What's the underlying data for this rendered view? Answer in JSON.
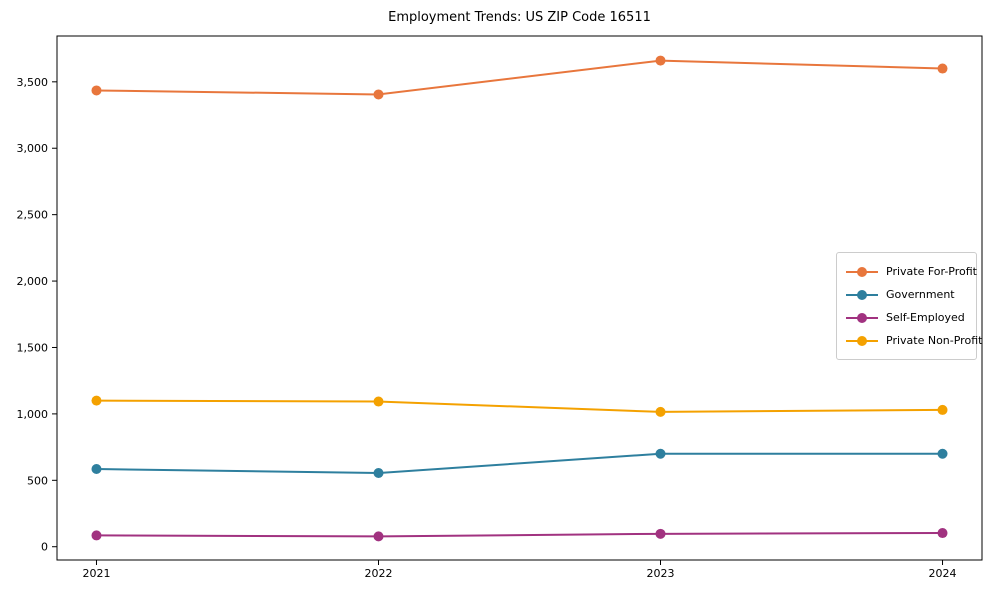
{
  "chart_data": {
    "type": "line",
    "title": "Employment Trends: US ZIP Code 16511",
    "xlabel": "",
    "ylabel": "",
    "x": [
      2021,
      2022,
      2023,
      2024
    ],
    "x_tick_labels": [
      "2021",
      "2022",
      "2023",
      "2024"
    ],
    "y_ticks": [
      0,
      500,
      1000,
      1500,
      2000,
      2500,
      3000,
      3500
    ],
    "y_tick_labels": [
      "0",
      "500",
      "1,000",
      "1,500",
      "2,000",
      "2,500",
      "3,000",
      "3,500"
    ],
    "xlim": [
      2020.86,
      2024.14
    ],
    "ylim": [
      -100,
      3845
    ],
    "grid": false,
    "legend_position": "center-right",
    "marker": "circle",
    "series": [
      {
        "name": "Private For-Profit",
        "color": "#E8763C",
        "values": [
          3435,
          3405,
          3660,
          3600
        ]
      },
      {
        "name": "Government",
        "color": "#2E7F9E",
        "values": [
          585,
          555,
          700,
          700
        ]
      },
      {
        "name": "Self-Employed",
        "color": "#A13280",
        "values": [
          85,
          78,
          97,
          103
        ]
      },
      {
        "name": "Private Non-Profit",
        "color": "#F4A100",
        "values": [
          1100,
          1093,
          1015,
          1030
        ]
      }
    ]
  },
  "colors": {
    "axis": "#000000",
    "background": "#ffffff",
    "legend_border": "#cccccc"
  }
}
